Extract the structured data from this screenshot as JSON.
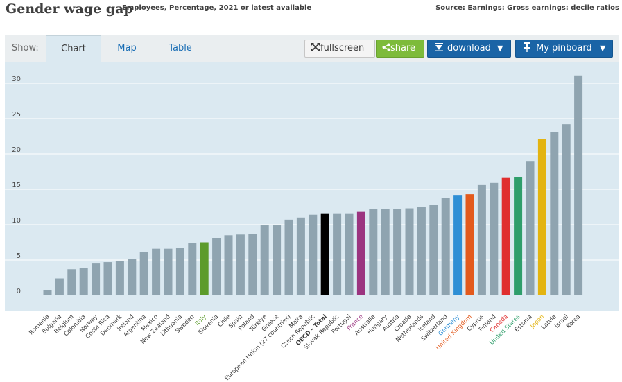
{
  "header": {
    "title": "Gender wage gap",
    "subtitle": "Employees, Percentage, 2021 or latest available",
    "source": "Source: Earnings: Gross earnings: decile ratios"
  },
  "toolbar": {
    "show_label": "Show:",
    "tabs": [
      "Chart",
      "Map",
      "Table"
    ],
    "fullscreen_label": "fullscreen",
    "share_label": "share",
    "download_label": "download",
    "pinboard_label": "My pinboard"
  },
  "colors": {
    "default": "#8fa4b0",
    "Italy": "#5c9b2b",
    "OECD - Total": "#000000",
    "France": "#9b3480",
    "Germany": "#2e8fd5",
    "United Kingdom": "#e35a1d",
    "Canada": "#e02f2f",
    "United States": "#2f9e6b",
    "Japan": "#e3b411"
  },
  "chart_data": {
    "type": "bar",
    "categories": [
      "Romania",
      "Bulgaria",
      "Belgium",
      "Colombia",
      "Norway",
      "Costa Rica",
      "Denmark",
      "Ireland",
      "Argentina",
      "Mexico",
      "New Zealand",
      "Lithuania",
      "Sweden",
      "Italy",
      "Slovenia",
      "Chile",
      "Spain",
      "Poland",
      "Türkiye",
      "Greece",
      "European Union (27 countries)",
      "Malta",
      "Czech Republic",
      "OECD - Total",
      "Slovak Republic",
      "Portugal",
      "France",
      "Australia",
      "Hungary",
      "Austria",
      "Croatia",
      "Netherlands",
      "Iceland",
      "Switzerland",
      "Germany",
      "United Kingdom",
      "Cyprus",
      "Finland",
      "Canada",
      "United States",
      "Estonia",
      "Japan",
      "Latvia",
      "Israel",
      "Korea"
    ],
    "values": [
      0.7,
      2.4,
      3.7,
      3.9,
      4.5,
      4.7,
      4.9,
      5.1,
      6.1,
      6.6,
      6.6,
      6.7,
      7.4,
      7.5,
      8.1,
      8.5,
      8.6,
      8.7,
      9.9,
      9.9,
      10.7,
      11.0,
      11.4,
      11.6,
      11.6,
      11.6,
      11.8,
      12.2,
      12.2,
      12.2,
      12.3,
      12.5,
      12.8,
      13.8,
      14.2,
      14.3,
      15.6,
      15.9,
      16.6,
      16.7,
      19.0,
      22.1,
      23.1,
      24.2,
      31.1
    ],
    "yticks": [
      0,
      5,
      10,
      15,
      20,
      25,
      30
    ],
    "ylim": [
      0,
      33
    ],
    "grid": true,
    "highlighted": [
      "Italy",
      "OECD - Total",
      "France",
      "Germany",
      "United Kingdom",
      "Canada",
      "United States",
      "Japan"
    ],
    "bold_labels": [
      "OECD - Total"
    ]
  }
}
